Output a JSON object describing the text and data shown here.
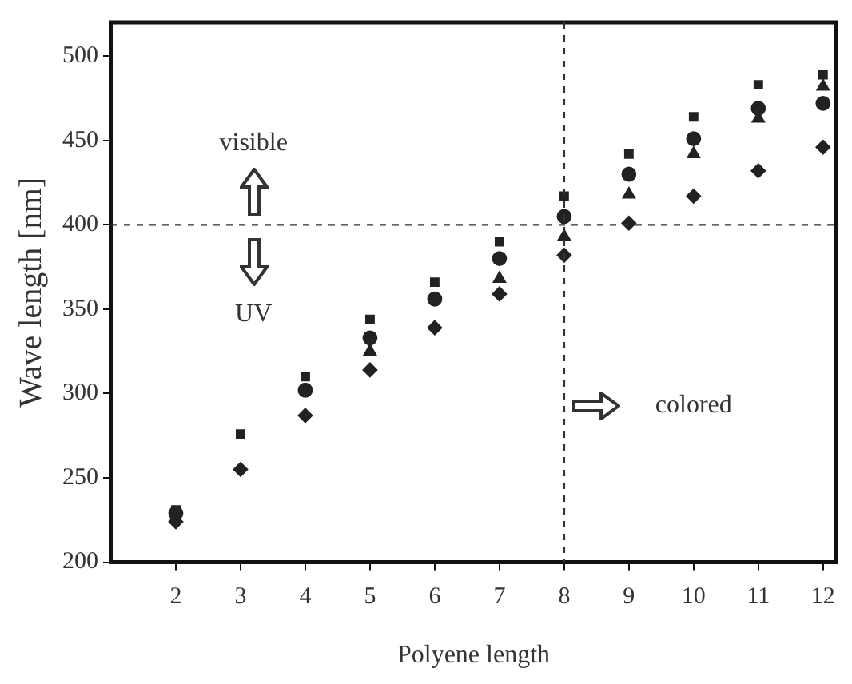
{
  "chart_data": {
    "type": "scatter",
    "xlabel": "Polyene length",
    "ylabel": "Wave length [nm]",
    "x": [
      2,
      3,
      4,
      5,
      6,
      7,
      8,
      9,
      10,
      11,
      12
    ],
    "series": [
      {
        "color": "#222222",
        "marker": "square",
        "values": [
          231,
          276,
          310,
          344,
          366,
          390,
          417,
          442,
          464,
          483,
          489
        ]
      },
      {
        "color": "#222222",
        "marker": "circle",
        "values": [
          229,
          null,
          302,
          333,
          356,
          380,
          405,
          430,
          451,
          469,
          472
        ]
      },
      {
        "color": "#222222",
        "marker": "triangle",
        "values": [
          null,
          null,
          null,
          325,
          null,
          368,
          393,
          418,
          442,
          463,
          482
        ]
      },
      {
        "color": "#222222",
        "marker": "diamond",
        "values": [
          224,
          255,
          287,
          314,
          339,
          359,
          382,
          401,
          417,
          432,
          446
        ]
      }
    ],
    "xlim": [
      1,
      12.2
    ],
    "xticks": [
      2,
      3,
      4,
      5,
      6,
      7,
      8,
      9,
      10,
      11,
      12
    ],
    "ylim": [
      200,
      520
    ],
    "yticks": [
      200,
      250,
      300,
      350,
      400,
      450,
      500
    ],
    "grid": false,
    "legend": false,
    "ref_lines": [
      {
        "axis": "y",
        "value": 400,
        "line_style": "dashed"
      },
      {
        "axis": "x",
        "value": 8,
        "line_style": "dashed"
      }
    ],
    "annotations": [
      "visible",
      "UV",
      "colored"
    ]
  }
}
